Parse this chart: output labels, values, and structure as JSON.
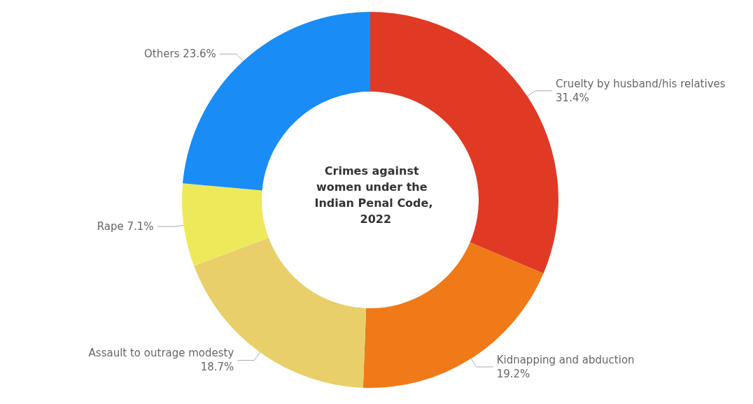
{
  "chart_data": {
    "type": "donut",
    "title": "Crimes against women under the Indian Penal Code, 2022",
    "categories": [
      "Cruelty by husband/his relatives",
      "Kidnapping and abduction",
      "Assault to outrage modesty",
      "Rape",
      "Others"
    ],
    "values": [
      31.4,
      19.2,
      18.7,
      7.1,
      23.6
    ],
    "colors": [
      "#e03a25",
      "#f07a18",
      "#e8cf6a",
      "#eee95a",
      "#1a8cf5"
    ],
    "value_labels": [
      "31.4%",
      "19.2%",
      "18.7%",
      "7.1%",
      "23.6%"
    ],
    "legend": false
  }
}
